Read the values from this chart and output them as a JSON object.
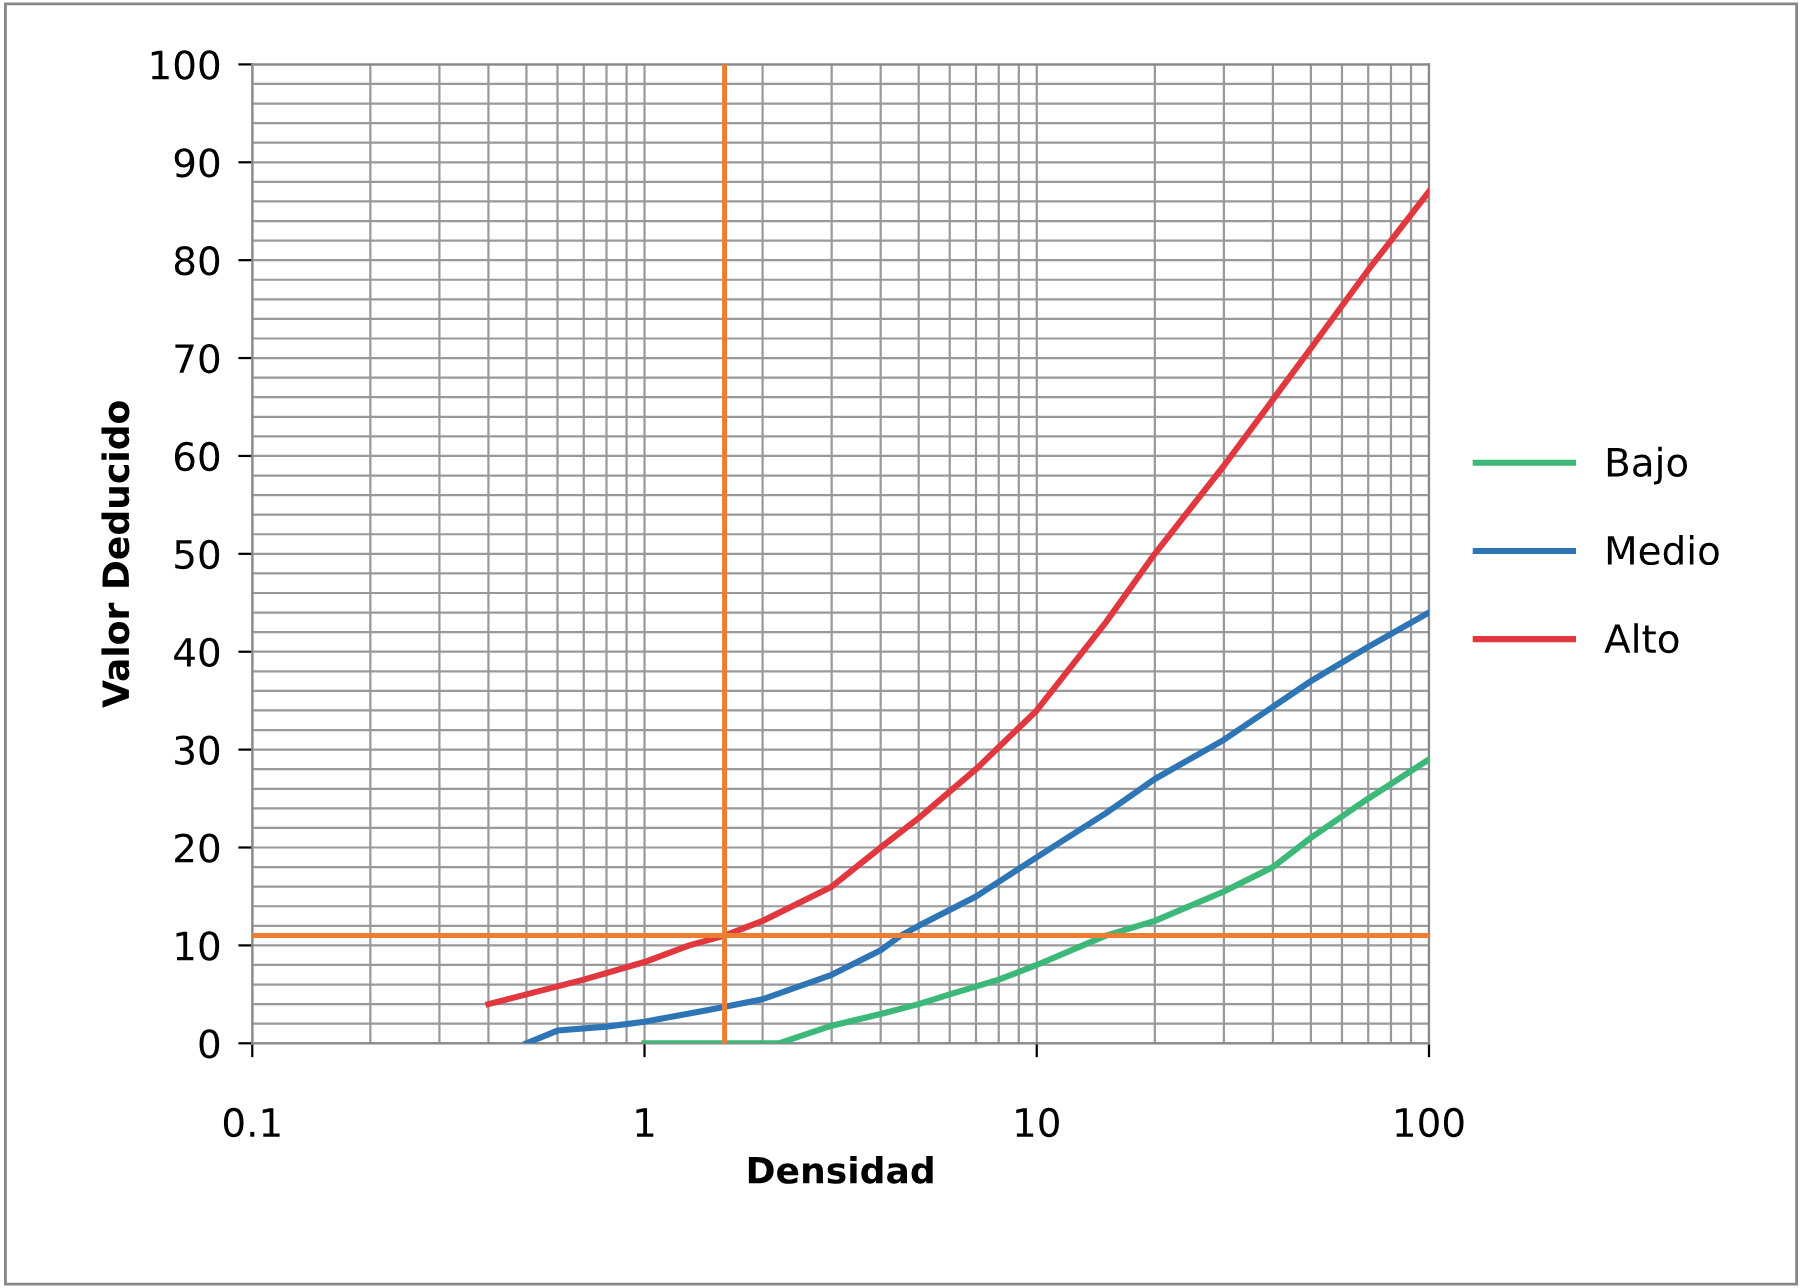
{
  "chart_data": {
    "type": "line",
    "xlabel": "Densidad",
    "ylabel": "Valor Deducido",
    "log": "x",
    "xlim": [
      0.1,
      100
    ],
    "xticks": [
      0.1,
      1,
      10,
      100
    ],
    "ylim": [
      0,
      100
    ],
    "yticks": [
      0,
      10,
      20,
      30,
      40,
      50,
      60,
      70,
      80,
      90,
      100
    ],
    "grid": true,
    "legend": "right",
    "marker": "none",
    "line_style": "solid",
    "series": [
      {
        "name": "Bajo",
        "color": "#3cb878",
        "x": [
          1,
          1.5,
          2,
          2.2,
          3,
          4,
          5,
          6,
          8,
          10,
          15,
          20,
          30,
          40,
          50,
          70,
          100
        ],
        "values": [
          0,
          0,
          0,
          0,
          1.8,
          3,
          4,
          5,
          6.5,
          8,
          11,
          12.5,
          15.5,
          18,
          21,
          25,
          29
        ]
      },
      {
        "name": "Medio",
        "color": "#2e75b6",
        "x": [
          0.5,
          0.6,
          0.8,
          1,
          1.5,
          2,
          3,
          4,
          4.5,
          5,
          7,
          10,
          15,
          20,
          30,
          50,
          70,
          100
        ],
        "values": [
          0,
          1.3,
          1.7,
          2.2,
          3.5,
          4.5,
          7,
          9.5,
          11,
          12,
          15,
          19,
          23.5,
          27,
          31,
          37,
          40.5,
          44
        ]
      },
      {
        "name": "Alto",
        "color": "#e0383e",
        "x": [
          0.4,
          0.5,
          0.7,
          1,
          1.3,
          1.6,
          2,
          3,
          4,
          5,
          7,
          10,
          15,
          20,
          30,
          50,
          70,
          100
        ],
        "values": [
          4,
          5,
          6.5,
          8.3,
          10,
          11,
          12.5,
          16,
          20,
          23,
          28,
          34,
          43,
          50,
          59,
          71,
          79,
          87
        ]
      }
    ],
    "ref_lines": [
      {
        "axis": "x",
        "value": 1.6,
        "color": "#ed7d31"
      },
      {
        "axis": "y",
        "value": 11,
        "color": "#ed7d31"
      }
    ]
  }
}
